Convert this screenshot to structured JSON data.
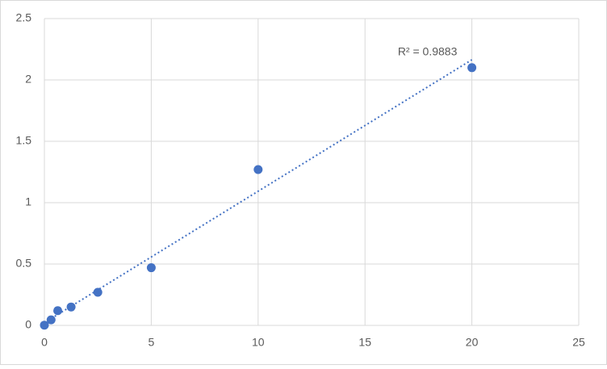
{
  "chart_data": {
    "type": "scatter",
    "x": [
      0,
      0.313,
      0.625,
      1.25,
      2.5,
      5,
      10,
      20
    ],
    "series": [
      {
        "color": "#4472c4",
        "values": [
          0.002,
          0.045,
          0.12,
          0.15,
          0.27,
          0.47,
          1.27,
          2.1
        ]
      }
    ],
    "xlim": [
      0,
      25
    ],
    "xticks": [
      0,
      5,
      10,
      15,
      20,
      25
    ],
    "ylim": [
      0,
      2.5
    ],
    "yticks": [
      0,
      0.5,
      1,
      1.5,
      2,
      2.5
    ],
    "grid": true,
    "trendline": "linear",
    "annotation": "R² = 0.9883"
  }
}
